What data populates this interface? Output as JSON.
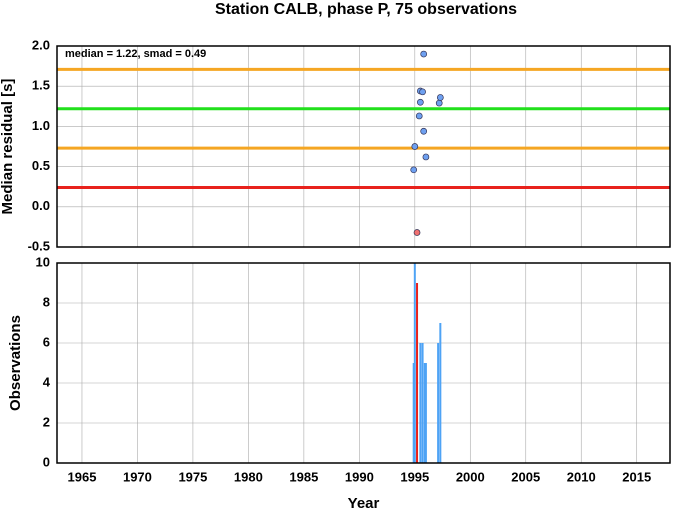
{
  "chart_data": [
    {
      "type": "scatter",
      "title": "Station CALB, phase P, 75 observations",
      "ylabel": "Median residual [s]",
      "annotation": "median = 1.22, smad = 0.49",
      "xlim": [
        1962.75,
        2018
      ],
      "xticks": [
        1965,
        1970,
        1975,
        1980,
        1985,
        1990,
        1995,
        2000,
        2005,
        2010,
        2015
      ],
      "ylim": [
        -0.5,
        2.0
      ],
      "yticks": [
        {
          "value": 2.0,
          "label": "2.0"
        },
        1.5,
        {
          "value": 1.0,
          "label": "1.0"
        },
        0.5,
        {
          "value": 0.0,
          "label": "0.0"
        },
        -0.5
      ],
      "grid": true,
      "reference_lines": [
        {
          "value": 1.71,
          "color": "#f5a623"
        },
        {
          "value": 1.22,
          "color": "#22e01c"
        },
        {
          "value": 0.73,
          "color": "#f5a623"
        },
        {
          "value": 0.24,
          "color": "#e8221c"
        }
      ],
      "series": [
        {
          "color": "#6ea0f0",
          "x": [
            1994.9,
            1995.0,
            1995.4,
            1995.5,
            1995.5,
            1995.7,
            1995.8,
            1995.8,
            1996.0,
            1997.2,
            1997.3
          ],
          "values": [
            0.46,
            0.75,
            1.13,
            1.3,
            1.44,
            1.43,
            1.9,
            0.94,
            0.62,
            1.29,
            1.36
          ]
        },
        {
          "color": "#f07070",
          "x": [
            1995.2
          ],
          "values": [
            -0.32
          ]
        }
      ]
    },
    {
      "type": "bar",
      "ylabel": "Observations",
      "xlabel": "Year",
      "xlim": [
        1962.75,
        2018
      ],
      "xticks": [
        1965,
        1970,
        1975,
        1980,
        1985,
        1990,
        1995,
        2000,
        2005,
        2010,
        2015
      ],
      "ylim": [
        0,
        10
      ],
      "yticks": [
        0,
        2,
        4,
        6,
        8,
        10
      ],
      "grid": true,
      "series": [
        {
          "color": "#4ea3f5",
          "x": [
            1994.9,
            1995.0,
            1995.5,
            1995.7,
            1995.9,
            1996.0,
            1997.1,
            1997.3
          ],
          "values": [
            5,
            10,
            6,
            6,
            5,
            5,
            6,
            7
          ]
        },
        {
          "color": "#e8221c",
          "x": [
            1995.2
          ],
          "values": [
            9
          ]
        }
      ]
    }
  ]
}
